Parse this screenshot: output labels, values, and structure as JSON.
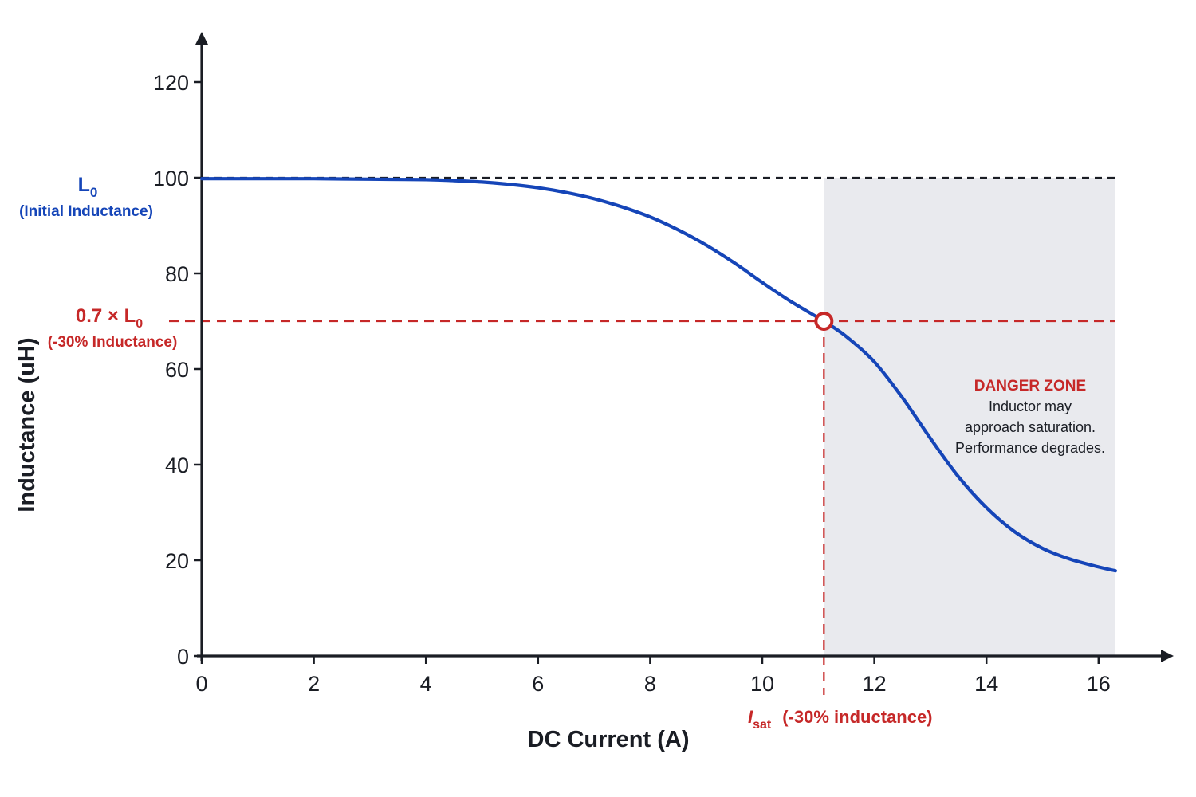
{
  "chart_data": {
    "type": "line",
    "title": "",
    "xlabel": "DC Current (A)",
    "ylabel": "Inductance (uH)",
    "xlim": [
      0,
      16.4
    ],
    "ylim": [
      0,
      120
    ],
    "xticks": [
      0,
      2,
      4,
      6,
      8,
      10,
      12,
      14,
      16
    ],
    "yticks": [
      0,
      20,
      40,
      60,
      80,
      100,
      120
    ],
    "grid": false,
    "series": [
      {
        "name": "",
        "color": "#1545b8",
        "x": [
          0,
          1,
          2,
          3,
          4,
          4.5,
          5,
          5.5,
          6,
          6.5,
          7,
          7.5,
          8,
          8.5,
          9,
          9.5,
          10,
          10.5,
          11.1,
          11.5,
          12,
          12.5,
          13,
          13.5,
          14,
          14.5,
          15,
          15.5,
          16,
          16.3
        ],
        "y": [
          99.8,
          99.8,
          99.8,
          99.7,
          99.6,
          99.4,
          99.1,
          98.6,
          97.9,
          96.9,
          95.6,
          93.9,
          91.8,
          89.1,
          85.9,
          82.2,
          78.1,
          74.2,
          70.0,
          66.8,
          61.5,
          54.0,
          45.5,
          37.5,
          31.0,
          26.0,
          22.5,
          20.2,
          18.6,
          17.8
        ]
      }
    ],
    "reference_lines": [
      {
        "type": "horizontal",
        "y": 100,
        "style": "dashed",
        "color": "#1a1d24"
      },
      {
        "type": "horizontal",
        "y": 70,
        "style": "dashed",
        "color": "#c62828"
      },
      {
        "type": "vertical",
        "x": 11.1,
        "style": "dashed",
        "color": "#c62828"
      }
    ],
    "marker": {
      "x": 11.1,
      "y": 70,
      "style": "hollow-circle",
      "color": "#c62828"
    },
    "shaded_region": {
      "x_from": 11.1,
      "x_to": 16.3,
      "y_from": 0,
      "y_to": 100,
      "color": "#e9eaee"
    },
    "annotations": {
      "l0_symbol": "L",
      "l0_subscript": "0",
      "l0_caption": "(Initial Inductance)",
      "threshold_prefix": "0.7 × L",
      "threshold_subscript": "0",
      "threshold_caption": "(-30% Inductance)",
      "isat_symbol": "I",
      "isat_subscript": "sat",
      "isat_caption": "(-30% inductance)",
      "zone_title": "DANGER ZONE",
      "zone_lines": [
        "Inductor may",
        "approach saturation.",
        "Performance degrades."
      ]
    },
    "colors": {
      "curve": "#1545b8",
      "accent_red": "#c62828",
      "axis": "#1a1d24",
      "zone_fill": "#e9eaee"
    }
  }
}
